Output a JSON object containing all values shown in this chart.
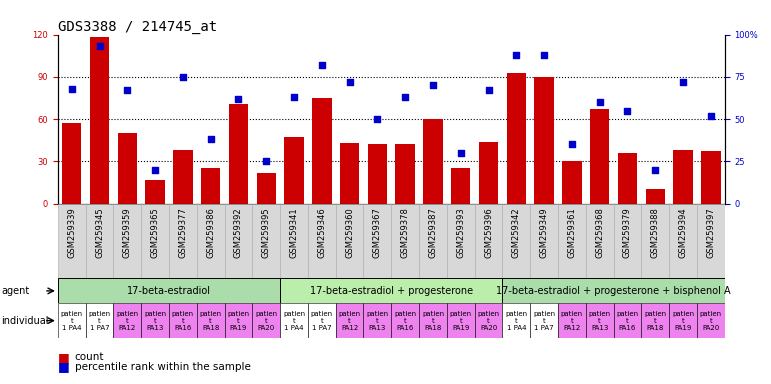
{
  "title": "GDS3388 / 214745_at",
  "gsm_labels": [
    "GSM259339",
    "GSM259345",
    "GSM259359",
    "GSM259365",
    "GSM259377",
    "GSM259386",
    "GSM259392",
    "GSM259395",
    "GSM259341",
    "GSM259346",
    "GSM259360",
    "GSM259367",
    "GSM259378",
    "GSM259387",
    "GSM259393",
    "GSM259396",
    "GSM259342",
    "GSM259349",
    "GSM259361",
    "GSM259368",
    "GSM259379",
    "GSM259388",
    "GSM259394",
    "GSM259397"
  ],
  "counts": [
    57,
    118,
    50,
    17,
    38,
    25,
    71,
    22,
    47,
    75,
    43,
    42,
    42,
    60,
    25,
    44,
    93,
    90,
    30,
    67,
    36,
    10,
    38,
    37
  ],
  "percentile_ranks": [
    68,
    93,
    67,
    20,
    75,
    38,
    62,
    25,
    63,
    82,
    72,
    50,
    63,
    70,
    30,
    67,
    88,
    88,
    35,
    60,
    55,
    20,
    72,
    52
  ],
  "agent_groups": [
    {
      "label": "17-beta-estradiol",
      "start": 0,
      "end": 8,
      "color": "#aaddaa"
    },
    {
      "label": "17-beta-estradiol + progesterone",
      "start": 8,
      "end": 16,
      "color": "#bbeeaa"
    },
    {
      "label": "17-beta-estradiol + progesterone + bisphenol A",
      "start": 16,
      "end": 24,
      "color": "#aaddaa"
    }
  ],
  "individual_colors": [
    "#ffffff",
    "#ffffff",
    "#ee82ee",
    "#ee82ee",
    "#ee82ee",
    "#ee82ee",
    "#ee82ee",
    "#ee82ee",
    "#ffffff",
    "#ffffff",
    "#ee82ee",
    "#ee82ee",
    "#ee82ee",
    "#ee82ee",
    "#ee82ee",
    "#ee82ee",
    "#ffffff",
    "#ffffff",
    "#ee82ee",
    "#ee82ee",
    "#ee82ee",
    "#ee82ee",
    "#ee82ee",
    "#ee82ee"
  ],
  "individual_labels": [
    "patien\nt\n1 PA4",
    "patien\nt\n1 PA7",
    "patien\nt\nPA12",
    "patien\nt\nPA13",
    "patien\nt\nPA16",
    "patien\nt\nPA18",
    "patien\nt\nPA19",
    "patien\nt\nPA20",
    "patien\nt\n1 PA4",
    "patien\nt\n1 PA7",
    "patien\nt\nPA12",
    "patien\nt\nPA13",
    "patien\nt\nPA16",
    "patien\nt\nPA18",
    "patien\nt\nPA19",
    "patien\nt\nPA20",
    "patien\nt\n1 PA4",
    "patien\nt\n1 PA7",
    "patien\nt\nPA12",
    "patien\nt\nPA13",
    "patien\nt\nPA16",
    "patien\nt\nPA18",
    "patien\nt\nPA19",
    "patien\nt\nPA20"
  ],
  "bar_color": "#cc0000",
  "dot_color": "#0000cc",
  "ylim_left": [
    0,
    120
  ],
  "ylim_right": [
    0,
    100
  ],
  "yticks_left": [
    0,
    30,
    60,
    90,
    120
  ],
  "yticks_right": [
    0,
    25,
    50,
    75,
    100
  ],
  "ytick_labels_right": [
    "0",
    "25",
    "50",
    "75",
    "100%"
  ],
  "grid_dotted_at": [
    30,
    60,
    90
  ],
  "bg_color": "#ffffff",
  "title_fontsize": 10,
  "tick_fontsize": 6,
  "annot_fontsize": 7,
  "legend_fontsize": 7.5,
  "agent_fontsize": 7,
  "indiv_fontsize": 5
}
